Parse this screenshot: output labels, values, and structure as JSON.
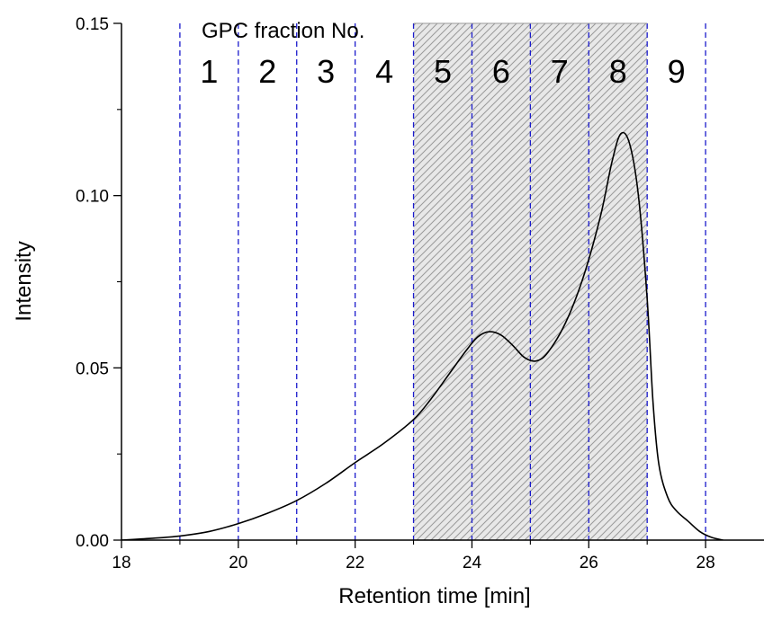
{
  "chart_data": {
    "type": "line",
    "title": "",
    "xlabel": "Retention time [min]",
    "ylabel": "Intensity",
    "xlim": [
      18,
      29
    ],
    "ylim": [
      0,
      0.15
    ],
    "grid": false,
    "legend": "none",
    "x_ticks": [
      18,
      20,
      22,
      24,
      26,
      28
    ],
    "x_tick_labels": [
      "18",
      "20",
      "22",
      "24",
      "26",
      "28"
    ],
    "y_ticks": [
      0,
      0.05,
      0.1,
      0.15
    ],
    "y_tick_labels": [
      "0.00",
      "0.05",
      "0.10",
      "0.15"
    ],
    "annotation_title": "GPC fraction No.",
    "fraction_boundaries": [
      19,
      20,
      21,
      22,
      23,
      24,
      25,
      26,
      27,
      28
    ],
    "fraction_labels": [
      {
        "label": "1",
        "x": 19.5
      },
      {
        "label": "2",
        "x": 20.5
      },
      {
        "label": "3",
        "x": 21.5
      },
      {
        "label": "4",
        "x": 22.5
      },
      {
        "label": "5",
        "x": 23.5
      },
      {
        "label": "6",
        "x": 24.5
      },
      {
        "label": "7",
        "x": 25.5
      },
      {
        "label": "8",
        "x": 26.5
      },
      {
        "label": "9",
        "x": 27.5
      }
    ],
    "shaded_range": [
      23,
      27
    ],
    "colors": {
      "curve": "#000000",
      "boundary": "#1a1acc",
      "hatch": "#9a9a9a",
      "shade": "#e8e8e8"
    },
    "series": [
      {
        "x": [
          18.0,
          18.5,
          19.0,
          19.5,
          20.0,
          20.5,
          21.0,
          21.5,
          22.0,
          22.5,
          23.0,
          23.3,
          23.6,
          23.9,
          24.1,
          24.3,
          24.5,
          24.7,
          24.9,
          25.1,
          25.3,
          25.6,
          25.9,
          26.2,
          26.4,
          26.55,
          26.7,
          26.85,
          27.0,
          27.1,
          27.2,
          27.35,
          27.5,
          27.7,
          27.9,
          28.1,
          28.3
        ],
        "y": [
          0.0,
          0.0005,
          0.0012,
          0.0025,
          0.0048,
          0.0078,
          0.0115,
          0.0165,
          0.0225,
          0.0282,
          0.035,
          0.041,
          0.048,
          0.055,
          0.059,
          0.0605,
          0.0595,
          0.0565,
          0.053,
          0.052,
          0.0545,
          0.063,
          0.076,
          0.094,
          0.11,
          0.118,
          0.115,
          0.1,
          0.07,
          0.04,
          0.022,
          0.0125,
          0.0085,
          0.0055,
          0.0025,
          0.0008,
          0.0
        ]
      }
    ]
  }
}
